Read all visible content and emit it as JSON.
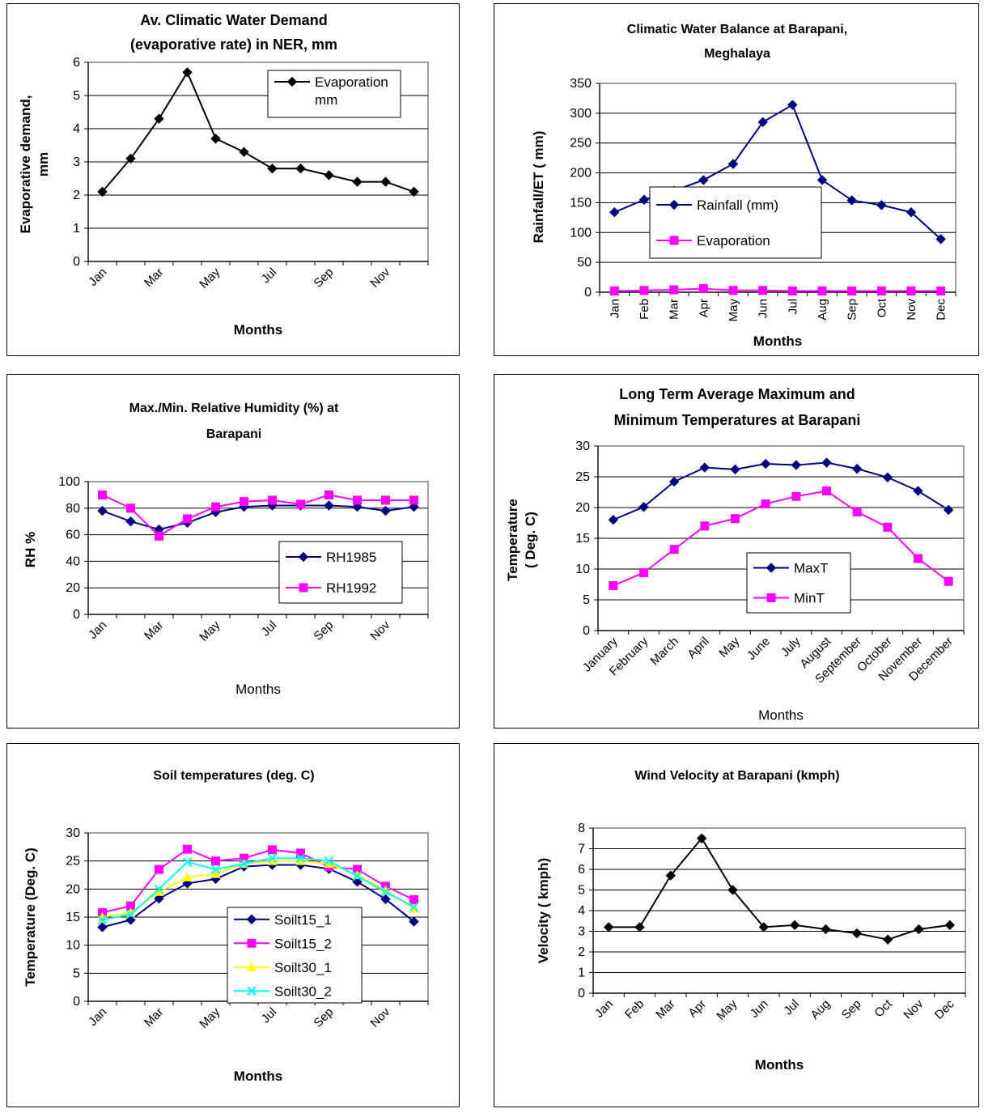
{
  "chart_data": [
    {
      "type": "line",
      "title": "Av. Climatic Water Demand (evaporative rate) in NER, mm",
      "title_lines": [
        "Av. Climatic Water Demand",
        "(evaporative rate) in NER, mm"
      ],
      "xlabel": "Months",
      "ylabel": "Evaporative demand,",
      "ylabel2": "mm",
      "categories": [
        "Jan",
        "Feb",
        "Mar",
        "Apr",
        "May",
        "Jun",
        "Jul",
        "Aug",
        "Sep",
        "Oct",
        "Nov",
        "Dec"
      ],
      "tick_labels": [
        "Jan",
        "",
        "Mar",
        "",
        "May",
        "",
        "Jul",
        "",
        "Sep",
        "",
        "Nov",
        ""
      ],
      "ylim": [
        0,
        6
      ],
      "yticks": [
        0,
        1,
        2,
        3,
        4,
        5,
        6
      ],
      "grid": true,
      "legend_position": "top-right",
      "series": [
        {
          "name": "Evaporation mm",
          "legend_lines": [
            "Evaporation",
            "mm"
          ],
          "color": "#000000",
          "marker": "diamond",
          "values": [
            2.1,
            3.1,
            4.3,
            5.7,
            3.7,
            3.3,
            2.8,
            2.8,
            2.6,
            2.4,
            2.4,
            2.1
          ]
        }
      ]
    },
    {
      "type": "line",
      "title": "Climatic Water Balance at Barapani, Meghalaya",
      "title_lines": [
        "Climatic Water Balance at Barapani,",
        "Meghalaya"
      ],
      "xlabel": "Months",
      "ylabel": "Rainfall/ET ( mm)",
      "categories": [
        "Jan",
        "Feb",
        "Mar",
        "Apr",
        "May",
        "Jun",
        "Jul",
        "Aug",
        "Sep",
        "Oct",
        "Nov",
        "Dec"
      ],
      "tick_labels": [
        "Jan",
        "Feb",
        "Mar",
        "Apr",
        "May",
        "Jun",
        "Jul",
        "Aug",
        "Sep",
        "Oct",
        "Nov",
        "Dec"
      ],
      "ylim": [
        0,
        350
      ],
      "yticks": [
        0,
        50,
        100,
        150,
        200,
        250,
        300,
        350
      ],
      "grid": true,
      "legend_position": "center-right",
      "series": [
        {
          "name": "Rainfall (mm)",
          "color": "#000080",
          "marker": "diamond",
          "values": [
            134,
            155,
            170,
            188,
            215,
            285,
            314,
            188,
            154,
            146,
            134,
            89
          ]
        },
        {
          "name": "Evaporation",
          "color": "#ff00ff",
          "marker": "square",
          "values": [
            2,
            3,
            4,
            6,
            3,
            3,
            2,
            2,
            2,
            2,
            2,
            2
          ]
        }
      ]
    },
    {
      "type": "line",
      "title": "Max./Min. Relative Humidity (%) at Barapani",
      "title_lines": [
        "Max./Min. Relative Humidity (%) at",
        "Barapani"
      ],
      "xlabel": "Months",
      "ylabel": "RH %",
      "categories": [
        "Jan",
        "Feb",
        "Mar",
        "Apr",
        "May",
        "Jun",
        "Jul",
        "Aug",
        "Sep",
        "Oct",
        "Nov",
        "Dec"
      ],
      "tick_labels": [
        "Jan",
        "",
        "Mar",
        "",
        "May",
        "",
        "Jul",
        "",
        "Sep",
        "",
        "Nov",
        ""
      ],
      "ylim": [
        0,
        100
      ],
      "yticks": [
        0,
        20,
        40,
        60,
        80,
        100
      ],
      "grid": true,
      "legend_position": "bottom-right",
      "series": [
        {
          "name": "RH1985",
          "color": "#000080",
          "marker": "diamond",
          "values": [
            78,
            70,
            64,
            69,
            77,
            81,
            82,
            82,
            82,
            81,
            78,
            81
          ]
        },
        {
          "name": "RH1992",
          "color": "#ff00ff",
          "marker": "square",
          "values": [
            90,
            80,
            59,
            72,
            81,
            85,
            86,
            83,
            90,
            86,
            86,
            86
          ]
        }
      ]
    },
    {
      "type": "line",
      "title": "Long Term Average Maximum and Minimum Temperatures at Barapani",
      "title_lines": [
        "Long Term Average Maximum and",
        "Minimum Temperatures at Barapani"
      ],
      "xlabel": "Months",
      "ylabel": "Temperature",
      "ylabel2": "( Deg. C)",
      "categories": [
        "January",
        "February",
        "March",
        "April",
        "May",
        "June",
        "July",
        "August",
        "September",
        "October",
        "November",
        "December"
      ],
      "tick_labels": [
        "January",
        "February",
        "March",
        "April",
        "May",
        "June",
        "July",
        "August",
        "September",
        "October",
        "November",
        "December"
      ],
      "ylim": [
        0,
        30
      ],
      "yticks": [
        0,
        5,
        10,
        15,
        20,
        25,
        30
      ],
      "grid": true,
      "legend_position": "bottom-center",
      "series": [
        {
          "name": "MaxT",
          "color": "#000080",
          "marker": "diamond",
          "values": [
            18.0,
            20.1,
            24.2,
            26.5,
            26.2,
            27.1,
            26.9,
            27.3,
            26.3,
            24.9,
            22.7,
            19.6
          ]
        },
        {
          "name": "MinT",
          "color": "#ff00ff",
          "marker": "square",
          "values": [
            7.3,
            9.4,
            13.2,
            17.0,
            18.2,
            20.6,
            21.8,
            22.7,
            19.3,
            16.8,
            11.7,
            8.0
          ]
        }
      ]
    },
    {
      "type": "line",
      "title": "Soil temperatures (deg. C)",
      "title_lines": [
        "Soil temperatures (deg. C)"
      ],
      "xlabel": "Months",
      "ylabel": "Temperature (Deg. C)",
      "categories": [
        "Jan",
        "Feb",
        "Mar",
        "Apr",
        "May",
        "Jun",
        "Jul",
        "Aug",
        "Sep",
        "Oct",
        "Nov",
        "Dec"
      ],
      "tick_labels": [
        "Jan",
        "",
        "Mar",
        "",
        "May",
        "",
        "Jul",
        "",
        "Sep",
        "",
        "Nov",
        ""
      ],
      "ylim": [
        0,
        30
      ],
      "yticks": [
        0,
        5,
        10,
        15,
        20,
        25,
        30
      ],
      "grid": true,
      "legend_position": "bottom-center",
      "series": [
        {
          "name": "Soilt15_1",
          "color": "#000080",
          "marker": "diamond",
          "values": [
            13.2,
            14.5,
            18.3,
            21.0,
            21.8,
            24.0,
            24.3,
            24.3,
            23.6,
            21.3,
            18.2,
            14.2
          ]
        },
        {
          "name": "Soilt15_2",
          "color": "#ff00ff",
          "marker": "square",
          "values": [
            15.8,
            17.0,
            23.5,
            27.1,
            25.0,
            25.5,
            27.0,
            26.4,
            24.0,
            23.5,
            20.5,
            18.1
          ]
        },
        {
          "name": "Soilt30_1",
          "color": "#ffff00",
          "marker": "triangle",
          "values": [
            15.0,
            15.8,
            19.5,
            22.1,
            22.7,
            24.5,
            25.0,
            25.0,
            24.5,
            22.5,
            19.8,
            16.5
          ]
        },
        {
          "name": "Soilt30_2",
          "color": "#00ffff",
          "marker": "x",
          "values": [
            14.5,
            15.5,
            20.0,
            24.8,
            23.5,
            24.5,
            25.5,
            25.5,
            25.0,
            22.3,
            19.5,
            16.8
          ]
        }
      ]
    },
    {
      "type": "line",
      "title": "Wind Velocity at Barapani (kmph)",
      "title_lines": [
        "Wind Velocity at Barapani (kmph)"
      ],
      "xlabel": "Months",
      "ylabel": "Velocity ( kmph)",
      "categories": [
        "Jan",
        "Feb",
        "Mar",
        "Apr",
        "May",
        "Jun",
        "Jul",
        "Aug",
        "Sep",
        "Oct",
        "Nov",
        "Dec"
      ],
      "tick_labels": [
        "Jan",
        "Feb",
        "Mar",
        "Apr",
        "May",
        "Jun",
        "Jul",
        "Aug",
        "Sep",
        "Oct",
        "Nov",
        "Dec"
      ],
      "ylim": [
        0,
        8
      ],
      "yticks": [
        0,
        1,
        2,
        3,
        4,
        5,
        6,
        7,
        8
      ],
      "grid": true,
      "legend_position": "none",
      "series": [
        {
          "name": "",
          "color": "#000000",
          "marker": "diamond",
          "values": [
            3.2,
            3.2,
            5.7,
            7.5,
            5.0,
            3.2,
            3.3,
            3.1,
            2.9,
            2.6,
            3.1,
            3.3
          ]
        }
      ]
    }
  ]
}
